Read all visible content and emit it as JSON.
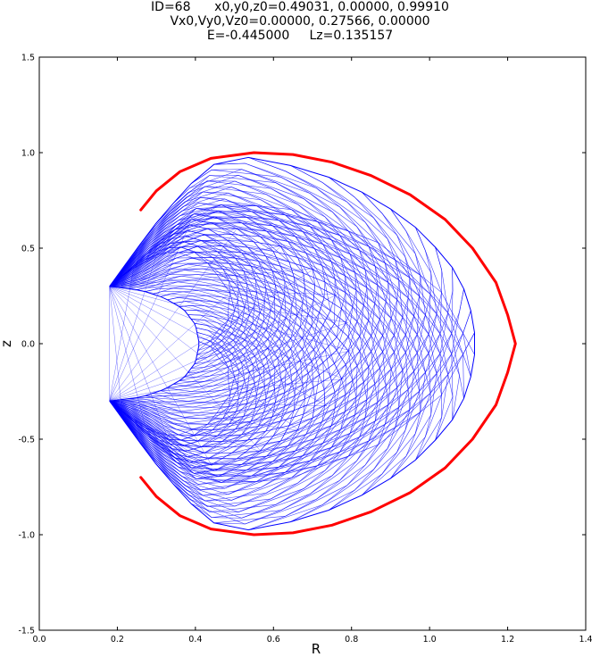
{
  "chart_data": {
    "type": "line",
    "title_lines": [
      "ID=68      x0,y0,z0=0.49031, 0.00000, 0.99910",
      "Vx0,Vy0,Vz0=0.00000, 0.27566, 0.00000",
      "E=-0.445000     Lz=0.135157"
    ],
    "xlabel": "R",
    "ylabel": "z",
    "xlim": [
      0.0,
      1.4
    ],
    "ylim": [
      -1.5,
      1.5
    ],
    "x_ticks": [
      "0.0",
      "0.2",
      "0.4",
      "0.6",
      "0.8",
      "1.0",
      "1.2",
      "1.4"
    ],
    "y_ticks": [
      "-1.5",
      "-1.0",
      "-0.5",
      "0.0",
      "0.5",
      "1.0",
      "1.5"
    ],
    "grid": false,
    "series": [
      {
        "kind": "zero-velocity curve",
        "color": "#ff0000",
        "points": [
          [
            0.26,
            0.7
          ],
          [
            0.3,
            0.8
          ],
          [
            0.36,
            0.9
          ],
          [
            0.44,
            0.97
          ],
          [
            0.55,
            1.0
          ],
          [
            0.65,
            0.99
          ],
          [
            0.75,
            0.95
          ],
          [
            0.85,
            0.88
          ],
          [
            0.95,
            0.78
          ],
          [
            1.04,
            0.65
          ],
          [
            1.11,
            0.5
          ],
          [
            1.17,
            0.32
          ],
          [
            1.2,
            0.15
          ],
          [
            1.22,
            0.0
          ],
          [
            1.2,
            -0.15
          ],
          [
            1.17,
            -0.32
          ],
          [
            1.11,
            -0.5
          ],
          [
            1.04,
            -0.65
          ],
          [
            0.95,
            -0.78
          ],
          [
            0.85,
            -0.88
          ],
          [
            0.75,
            -0.95
          ],
          [
            0.65,
            -0.99
          ],
          [
            0.55,
            -1.0
          ],
          [
            0.44,
            -0.97
          ],
          [
            0.36,
            -0.9
          ],
          [
            0.3,
            -0.8
          ],
          [
            0.26,
            -0.7
          ]
        ]
      },
      {
        "kind": "orbit envelope",
        "color": "#0000ff",
        "outer_boundary": [
          [
            0.18,
            0.3
          ],
          [
            0.24,
            0.47
          ],
          [
            0.31,
            0.66
          ],
          [
            0.39,
            0.84
          ],
          [
            0.46,
            0.96
          ],
          [
            0.49,
            0.99
          ],
          [
            0.55,
            0.97
          ],
          [
            0.65,
            0.93
          ],
          [
            0.76,
            0.86
          ],
          [
            0.87,
            0.75
          ],
          [
            0.97,
            0.6
          ],
          [
            1.05,
            0.43
          ],
          [
            1.1,
            0.24
          ],
          [
            1.12,
            0.0
          ],
          [
            1.1,
            -0.24
          ],
          [
            1.05,
            -0.43
          ],
          [
            0.97,
            -0.6
          ],
          [
            0.87,
            -0.75
          ],
          [
            0.76,
            -0.86
          ],
          [
            0.65,
            -0.93
          ],
          [
            0.55,
            -0.97
          ],
          [
            0.49,
            -0.99
          ],
          [
            0.46,
            -0.96
          ],
          [
            0.39,
            -0.84
          ],
          [
            0.31,
            -0.66
          ],
          [
            0.24,
            -0.47
          ],
          [
            0.18,
            -0.3
          ]
        ],
        "inner_boundary": [
          [
            0.18,
            0.3
          ],
          [
            0.26,
            0.28
          ],
          [
            0.32,
            0.24
          ],
          [
            0.37,
            0.18
          ],
          [
            0.4,
            0.1
          ],
          [
            0.41,
            0.0
          ],
          [
            0.4,
            -0.1
          ],
          [
            0.37,
            -0.18
          ],
          [
            0.32,
            -0.24
          ],
          [
            0.26,
            -0.28
          ],
          [
            0.18,
            -0.3
          ]
        ],
        "cusps": [
          [
            0.18,
            0.3
          ],
          [
            0.18,
            -0.3
          ]
        ]
      }
    ]
  }
}
